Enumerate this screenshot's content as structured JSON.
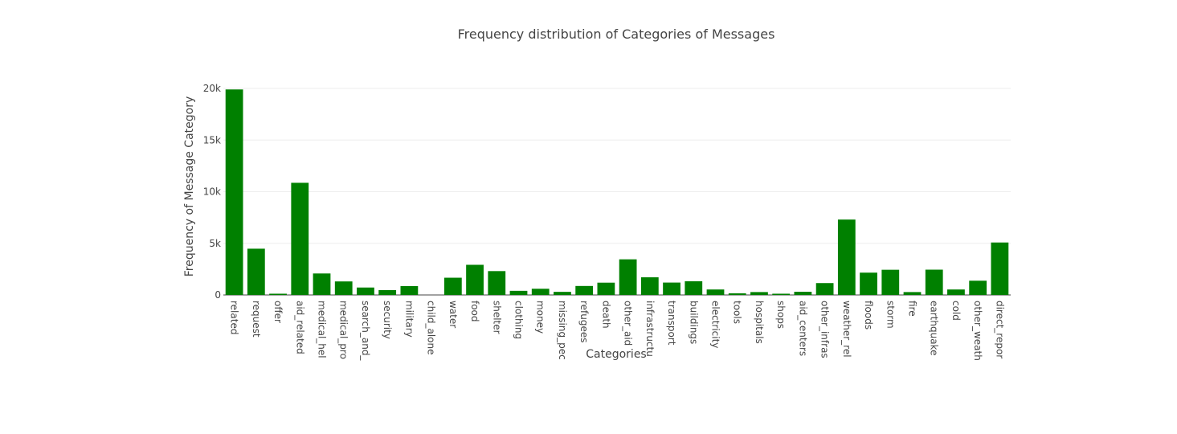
{
  "chart_data": {
    "type": "bar",
    "title": "Frequency distribution of Categories of Messages",
    "xlabel": "Categories",
    "ylabel": "Frequency of Message Category",
    "ylim": [
      0,
      20000
    ],
    "yticks": [
      0,
      5000,
      10000,
      15000,
      20000
    ],
    "ytick_labels": [
      "0",
      "5k",
      "10k",
      "15k",
      "20k"
    ],
    "grid": true,
    "bar_color": "#008000",
    "categories": [
      "related",
      "request",
      "offer",
      "aid_related",
      "medical_help",
      "medical_products",
      "search_and_rescue",
      "security",
      "military",
      "child_alone",
      "water",
      "food",
      "shelter",
      "clothing",
      "money",
      "missing_people",
      "refugees",
      "death",
      "other_aid",
      "infrastructure_related",
      "transport",
      "buildings",
      "electricity",
      "tools",
      "hospitals",
      "shops",
      "aid_centers",
      "other_infrastructure",
      "weather_related",
      "floods",
      "storm",
      "fire",
      "earthquake",
      "cold",
      "other_weather",
      "direct_report"
    ],
    "category_labels": [
      "related",
      "request",
      "offer",
      "aid_related",
      "medical_hel",
      "medical_pro",
      "search_and_",
      "security",
      "military",
      "child_alone",
      "water",
      "food",
      "shelter",
      "clothing",
      "money",
      "missing_pec",
      "refugees",
      "death",
      "other_aid",
      "infrastructu",
      "transport",
      "buildings",
      "electricity",
      "tools",
      "hospitals",
      "shops",
      "aid_centers",
      "other_infras",
      "weather_rel",
      "floods",
      "storm",
      "fire",
      "earthquake",
      "cold",
      "other_weath",
      "direct_repor"
    ],
    "values": [
      19900,
      4480,
      120,
      10860,
      2080,
      1310,
      720,
      470,
      860,
      0,
      1670,
      2920,
      2310,
      400,
      600,
      300,
      870,
      1190,
      3450,
      1710,
      1200,
      1330,
      530,
      160,
      280,
      120,
      310,
      1150,
      7300,
      2160,
      2440,
      280,
      2450,
      530,
      1380,
      5080
    ]
  }
}
